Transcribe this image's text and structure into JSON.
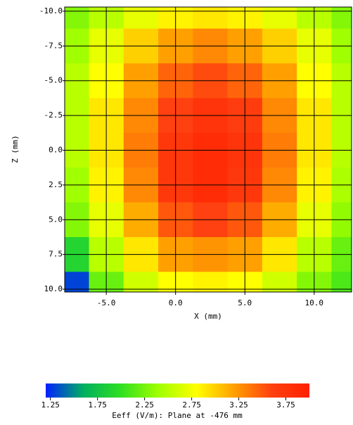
{
  "chart_data": {
    "type": "heatmap",
    "x_label": "X (mm)",
    "y_label": "Z (mm)",
    "colorbar_label": "Eeff (V/m): Plane at -476 mm",
    "x": [
      -7.5,
      -5,
      -2.5,
      0,
      2.5,
      5,
      7.5,
      10,
      12.5
    ],
    "z": [
      -10,
      -7.5,
      -5,
      -2.5,
      0,
      2.5,
      5,
      7.5,
      10
    ],
    "values": [
      [
        2.3,
        2.5,
        2.7,
        2.85,
        2.9,
        2.85,
        2.7,
        2.5,
        2.3
      ],
      [
        2.4,
        2.7,
        3.0,
        3.2,
        3.3,
        3.2,
        3.0,
        2.7,
        2.4
      ],
      [
        2.5,
        2.8,
        3.2,
        3.45,
        3.55,
        3.45,
        3.2,
        2.8,
        2.5
      ],
      [
        2.5,
        2.9,
        3.3,
        3.6,
        3.75,
        3.65,
        3.3,
        2.9,
        2.5
      ],
      [
        2.5,
        2.9,
        3.35,
        3.7,
        3.85,
        3.75,
        3.35,
        2.9,
        2.5
      ],
      [
        2.4,
        2.85,
        3.3,
        3.7,
        3.85,
        3.7,
        3.3,
        2.85,
        2.45
      ],
      [
        2.3,
        2.7,
        3.15,
        3.5,
        3.6,
        3.5,
        3.15,
        2.7,
        2.35
      ],
      [
        1.9,
        2.5,
        2.9,
        3.2,
        3.25,
        3.2,
        2.9,
        2.5,
        2.2
      ],
      [
        1.3,
        2.2,
        2.6,
        2.8,
        2.85,
        2.8,
        2.6,
        2.3,
        2.1
      ]
    ],
    "xlim": [
      -8,
      12.7
    ],
    "xticks": [
      {
        "value": -5,
        "label": "-5.0"
      },
      {
        "value": 0,
        "label": "0.0"
      },
      {
        "value": 5,
        "label": "5.0"
      },
      {
        "value": 10,
        "label": "10.0"
      }
    ],
    "ylim": [
      10.2,
      -10.3
    ],
    "yticks": [
      {
        "value": -10,
        "label": "-10.0"
      },
      {
        "value": -7.5,
        "label": "-7.5"
      },
      {
        "value": -5,
        "label": "-5.0"
      },
      {
        "value": -2.5,
        "label": "-2.5"
      },
      {
        "value": 0,
        "label": "0.0"
      },
      {
        "value": 2.5,
        "label": "2.5"
      },
      {
        "value": 5,
        "label": "5.0"
      },
      {
        "value": 7.5,
        "label": "7.5"
      },
      {
        "value": 10,
        "label": "10.0"
      }
    ],
    "clim": [
      1.2,
      4.0
    ],
    "cticks": [
      1.25,
      1.75,
      2.25,
      2.75,
      3.25,
      3.75
    ],
    "colormap": [
      "#0020ff",
      "#00b060",
      "#30e020",
      "#a0ff00",
      "#ffff00",
      "#ffa000",
      "#ff4010",
      "#ff2000"
    ],
    "grid": true,
    "grid_color": "#000000"
  }
}
